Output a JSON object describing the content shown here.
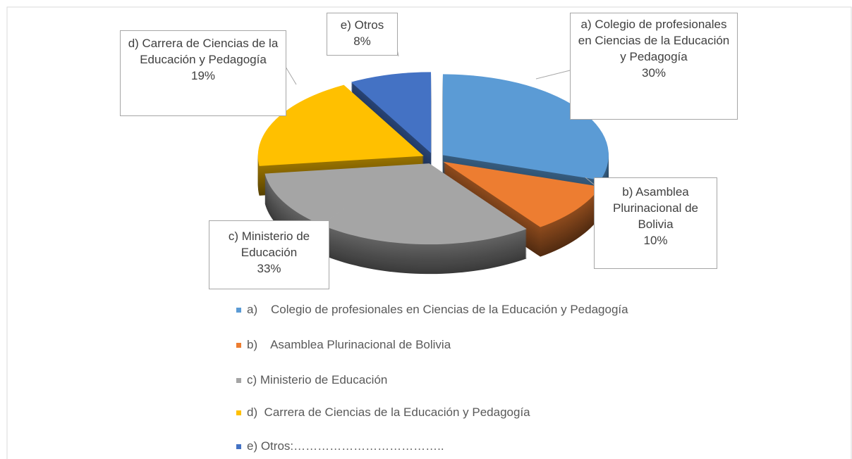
{
  "chart_data": {
    "type": "pie",
    "categories": [
      "a)    Colegio de profesionales en Ciencias de la Educación y Pedagogía",
      "b)    Asamblea Plurinacional de Bolivia",
      "c) Ministerio de Educación",
      "d)  Carrera de Ciencias de la Educación y Pedagogía",
      "e) Otros:……………………………….."
    ],
    "labels": [
      "a)    Colegio de profesionales en Ciencias de la Educación y Pedagogía",
      "b)    Asamblea Plurinacional de Bolivia",
      "c) Ministerio de Educación",
      "d)  Carrera de Ciencias de la Educación y Pedagogía",
      "e) Otros"
    ],
    "values": [
      30,
      10,
      33,
      19,
      8
    ],
    "value_labels": [
      "30%",
      "10%",
      "33%",
      "19%",
      "8%"
    ],
    "colors": [
      "#5b9bd5",
      "#ed7d31",
      "#a5a5a5",
      "#ffc000",
      "#4472c4"
    ],
    "legend": "bottom"
  }
}
